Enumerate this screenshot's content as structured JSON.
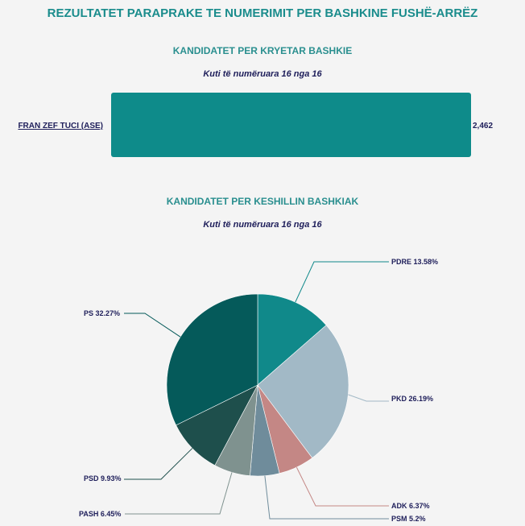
{
  "page": {
    "title": "REZULTATET PARAPRAKE TE NUMERIMIT PER BASHKINE FUSHË-ARRËZ"
  },
  "mayor_section": {
    "title": "KANDIDATET PER KRYETAR BASHKIE",
    "subtitle": "Kuti të numëruara 16 nga 16"
  },
  "council_section": {
    "title": "KANDIDATET PER KESHILLIN BASHKIAK",
    "subtitle": "Kuti të numëruara 16 nga 16"
  },
  "chart_data": [
    {
      "type": "bar",
      "orientation": "horizontal",
      "categories": [
        "FRAN ZEF TUCI (ASE)"
      ],
      "values": [
        2462
      ],
      "value_labels": [
        "2,462"
      ],
      "colors": [
        "#0e8b8a"
      ]
    },
    {
      "type": "pie",
      "slices": [
        {
          "label": "PDRE",
          "value": 13.58,
          "display": "PDRE 13.58%",
          "color": "#10898a"
        },
        {
          "label": "PKD",
          "value": 26.19,
          "display": "PKD 26.19%",
          "color": "#a2b9c6"
        },
        {
          "label": "ADK",
          "value": 6.37,
          "display": "ADK 6.37%",
          "color": "#c48785"
        },
        {
          "label": "PSM",
          "value": 5.2,
          "display": "PSM 5.2%",
          "color": "#6f8c9b"
        },
        {
          "label": "PASH",
          "value": 6.45,
          "display": "PASH 6.45%",
          "color": "#7f928f"
        },
        {
          "label": "PSD",
          "value": 9.93,
          "display": "PSD 9.93%",
          "color": "#1e4f4c"
        },
        {
          "label": "PS",
          "value": 32.27,
          "display": "PS 32.27%",
          "color": "#055a5a"
        }
      ]
    }
  ]
}
